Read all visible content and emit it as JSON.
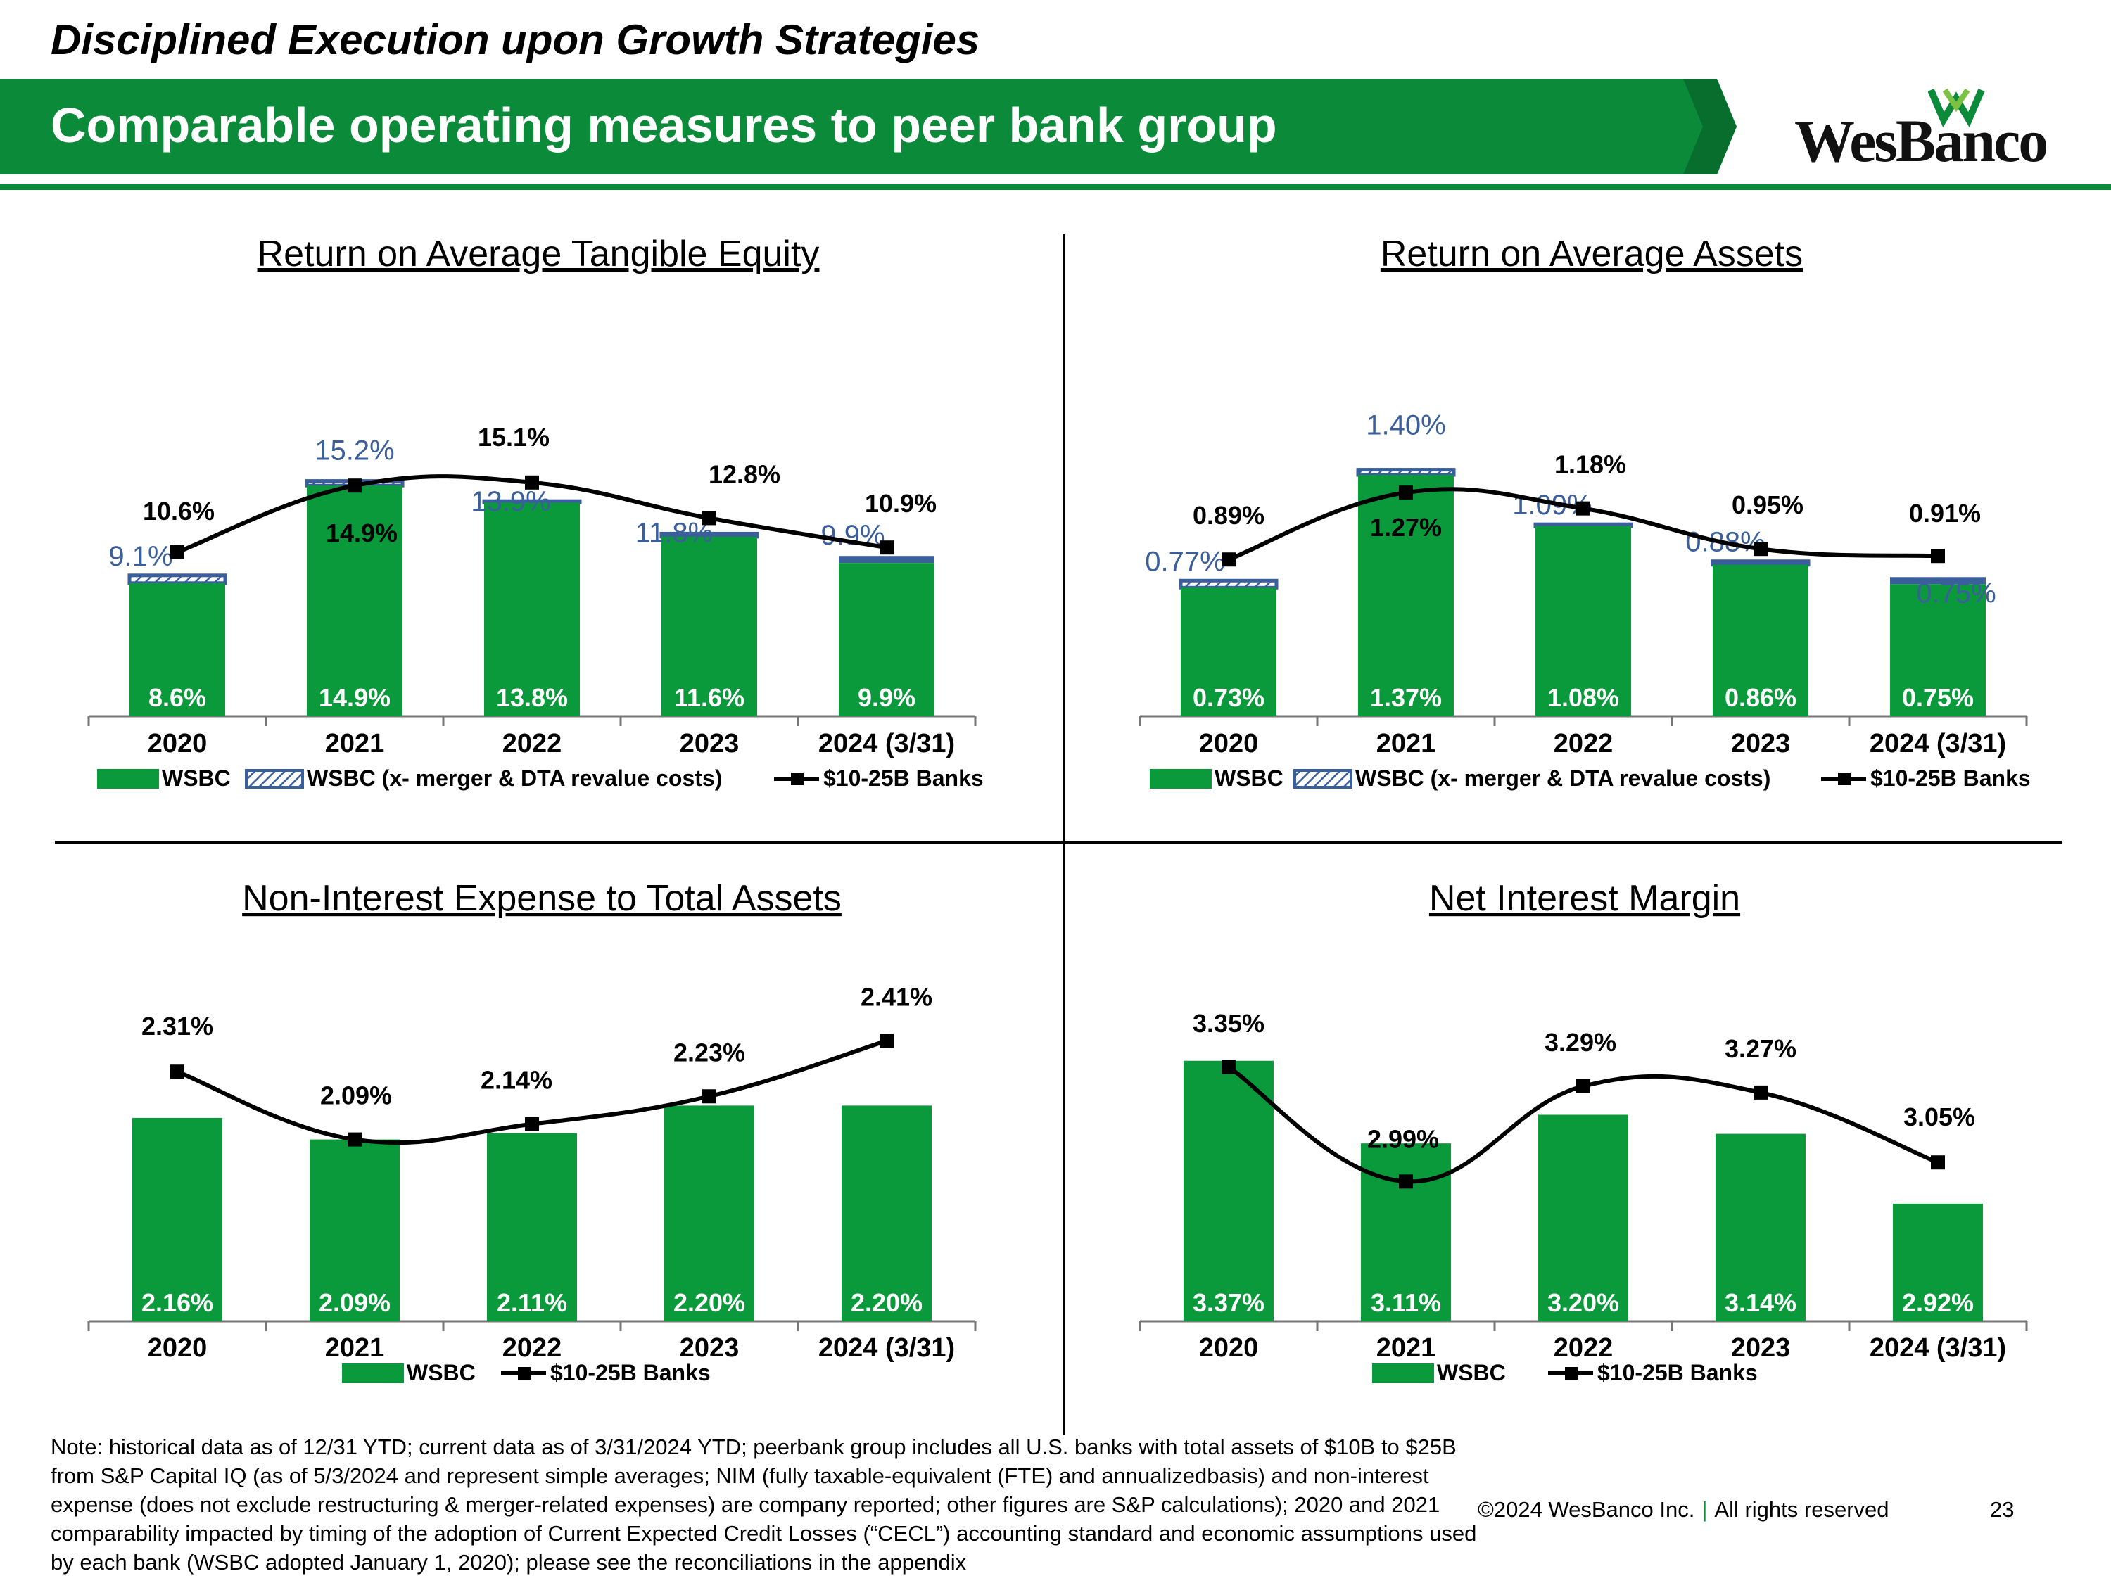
{
  "header": {
    "subtitle": "Disciplined Execution upon Growth Strategies",
    "title": "Comparable operating measures to peer bank group",
    "logo_text": "WesBanco",
    "brand_color": "#0b8a3a",
    "logo_mark_icon": "double-w-icon"
  },
  "chart_data": [
    {
      "id": "rote",
      "type": "bar",
      "title": "Return on Average Tangible Equity",
      "categories": [
        "2020",
        "2021",
        "2022",
        "2023",
        "2024 (3/31)"
      ],
      "series": [
        {
          "name": "WSBC",
          "kind": "bar",
          "color": "#0a9a3c",
          "values": [
            8.6,
            14.9,
            13.8,
            11.6,
            9.9
          ],
          "labels": [
            "8.6%",
            "14.9%",
            "13.8%",
            "11.6%",
            "9.9%"
          ]
        },
        {
          "name": "WSBC (x- merger & DTA revalue costs)",
          "kind": "bar-cap",
          "color": "#3a5f9c",
          "values": [
            9.1,
            15.2,
            13.9,
            11.8,
            9.9
          ],
          "labels": [
            "9.1%",
            "15.2%",
            "13.9%",
            "11.8%",
            "9.9%"
          ]
        },
        {
          "name": "$10-25B Banks",
          "kind": "line",
          "color": "#000000",
          "values": [
            10.6,
            14.9,
            15.1,
            12.8,
            10.9
          ],
          "labels": [
            "10.6%",
            "14.9%",
            "15.1%",
            "12.8%",
            "10.9%"
          ]
        }
      ],
      "ylim": [
        0,
        19
      ]
    },
    {
      "id": "roaa",
      "type": "bar",
      "title": "Return on Average Assets",
      "categories": [
        "2020",
        "2021",
        "2022",
        "2023",
        "2024 (3/31)"
      ],
      "series": [
        {
          "name": "WSBC",
          "kind": "bar",
          "color": "#0a9a3c",
          "values": [
            0.73,
            1.37,
            1.08,
            0.86,
            0.75
          ],
          "labels": [
            "0.73%",
            "1.37%",
            "1.08%",
            "0.86%",
            "0.75%"
          ]
        },
        {
          "name": "WSBC (x- merger & DTA revalue costs)",
          "kind": "bar-cap",
          "color": "#3a5f9c",
          "values": [
            0.77,
            1.4,
            1.09,
            0.88,
            0.75
          ],
          "labels": [
            "0.77%",
            "1.40%",
            "1.09%",
            "0.88%",
            "0.75%"
          ]
        },
        {
          "name": "$10-25B Banks",
          "kind": "line",
          "color": "#000000",
          "values": [
            0.89,
            1.27,
            1.18,
            0.95,
            0.91
          ],
          "labels": [
            "0.89%",
            "1.27%",
            "1.18%",
            "0.95%",
            "0.91%"
          ]
        }
      ],
      "ylim": [
        0,
        1.67
      ]
    },
    {
      "id": "nie",
      "type": "bar",
      "title": "Non-Interest Expense to Total Assets",
      "categories": [
        "2020",
        "2021",
        "2022",
        "2023",
        "2024 (3/31)"
      ],
      "series": [
        {
          "name": "WSBC",
          "kind": "bar",
          "color": "#0a9a3c",
          "values": [
            2.16,
            2.09,
            2.11,
            2.2,
            2.2
          ],
          "labels": [
            "2.16%",
            "2.09%",
            "2.11%",
            "2.20%",
            "2.20%"
          ]
        },
        {
          "name": "$10-25B Banks",
          "kind": "line",
          "color": "#000000",
          "values": [
            2.31,
            2.09,
            2.14,
            2.23,
            2.41
          ],
          "labels": [
            "2.31%",
            "2.09%",
            "2.14%",
            "2.23%",
            "2.41%"
          ]
        }
      ],
      "ylim": [
        1.5,
        2.5
      ]
    },
    {
      "id": "nim",
      "type": "bar",
      "title": "Net Interest Margin",
      "categories": [
        "2020",
        "2021",
        "2022",
        "2023",
        "2024 (3/31)"
      ],
      "series": [
        {
          "name": "WSBC",
          "kind": "bar",
          "color": "#0a9a3c",
          "values": [
            3.37,
            3.11,
            3.2,
            3.14,
            2.92
          ],
          "labels": [
            "3.37%",
            "3.11%",
            "3.20%",
            "3.14%",
            "2.92%"
          ]
        },
        {
          "name": "$10-25B Banks",
          "kind": "line",
          "color": "#000000",
          "values": [
            3.35,
            2.99,
            3.29,
            3.27,
            3.05
          ],
          "labels": [
            "3.35%",
            "2.99%",
            "3.29%",
            "3.27%",
            "3.05%"
          ]
        }
      ],
      "ylim": [
        2.55,
        3.52
      ]
    }
  ],
  "footer": {
    "note": "Note: historical data as of 12/31 YTD; current data as of 3/31/2024 YTD; peerbank group includes all U.S. banks with total assets of $10B to $25B from S&P Capital IQ (as of 5/3/2024 and represent simple averages; NIM (fully taxable-equivalent (FTE) and annualizedbasis) and non-interest expense (does not exclude restructuring & merger-related expenses) are company reported; other figures are S&P calculations); 2020 and 2021 comparability impacted by timing of the adoption of Current Expected Credit Losses (“CECL”) accounting standard and economic assumptions used by each bank (WSBC adopted January 1, 2020); please see the reconciliations in the appendix",
    "copyright": "©2024 WesBanco Inc.",
    "separator": "|",
    "rights": "All rights reserved",
    "page_number": "23"
  }
}
